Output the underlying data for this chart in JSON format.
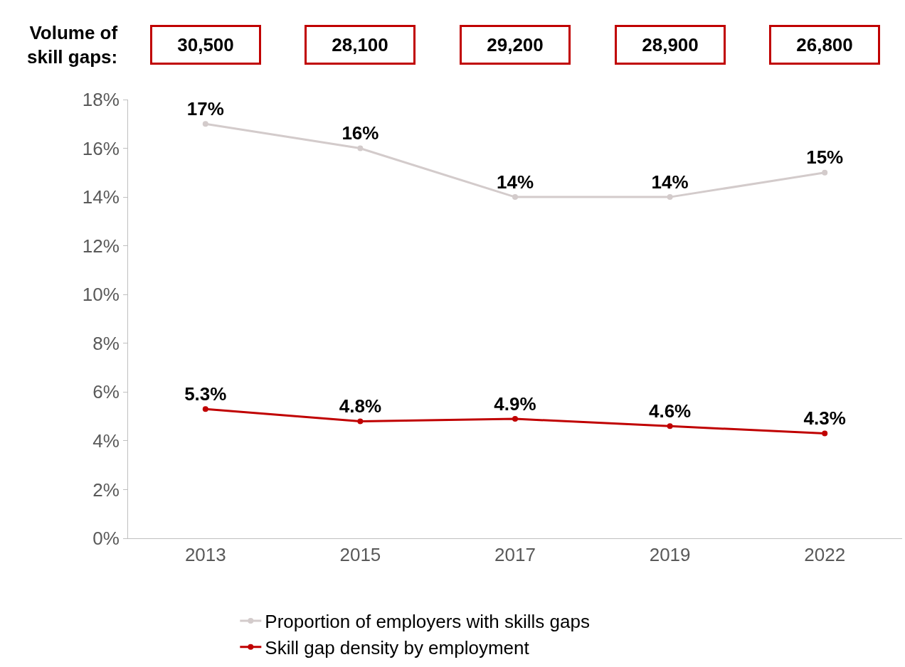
{
  "chart_data": {
    "type": "line",
    "categories": [
      "2013",
      "2015",
      "2017",
      "2019",
      "2022"
    ],
    "series": [
      {
        "name": "Proportion of employers with skills gaps",
        "color": "#d3cbcb",
        "values": [
          17,
          16,
          14,
          14,
          15
        ],
        "value_labels": [
          "17%",
          "16%",
          "14%",
          "14%",
          "15%"
        ]
      },
      {
        "name": "Skill gap density by employment",
        "color": "#c00000",
        "values": [
          5.3,
          4.8,
          4.9,
          4.6,
          4.3
        ],
        "value_labels": [
          "5.3%",
          "4.8%",
          "4.9%",
          "4.6%",
          "4.3%"
        ]
      }
    ],
    "ylim": [
      0,
      18
    ],
    "yticks": [
      {
        "value": 0,
        "label": "0%"
      },
      {
        "value": 2,
        "label": "2%"
      },
      {
        "value": 4,
        "label": "4%"
      },
      {
        "value": 6,
        "label": "6%"
      },
      {
        "value": 8,
        "label": "8%"
      },
      {
        "value": 10,
        "label": "10%"
      },
      {
        "value": 12,
        "label": "12%"
      },
      {
        "value": 14,
        "label": "14%"
      },
      {
        "value": 16,
        "label": "16%"
      },
      {
        "value": 18,
        "label": "18%"
      }
    ],
    "annotations": [
      "Volume of\nskill gaps:",
      "30,500",
      "28,100",
      "29,200",
      "28,900",
      "26,800"
    ],
    "legend": "bottom",
    "marker": "circle",
    "line_style": "solid"
  }
}
